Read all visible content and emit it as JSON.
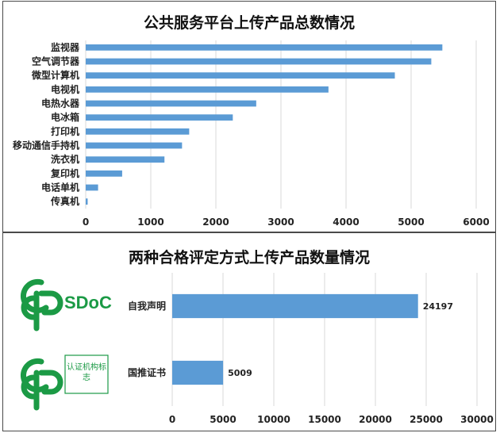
{
  "chart_data": [
    {
      "type": "bar",
      "orientation": "horizontal",
      "title": "公共服务平台上传产品总数情况",
      "categories": [
        "监视器",
        "空气调节器",
        "微型计算机",
        "电视机",
        "电热水器",
        "电冰箱",
        "打印机",
        "移动通信手持机",
        "洗衣机",
        "复印机",
        "电话单机",
        "传真机"
      ],
      "values": [
        5480,
        5310,
        4750,
        3730,
        2620,
        2260,
        1590,
        1480,
        1210,
        560,
        190,
        30
      ],
      "xlim": [
        0,
        6000
      ],
      "xticks": [
        "0",
        "1000",
        "2000",
        "3000",
        "4000",
        "5000",
        "6000"
      ],
      "grid": true,
      "bar_color": "#5b9bd5"
    },
    {
      "type": "bar",
      "orientation": "horizontal",
      "title": "两种合格评定方式上传产品数量情况",
      "categories": [
        "自我声明",
        "国推证书"
      ],
      "values": [
        24197,
        5009
      ],
      "data_labels": [
        "24197",
        "5009"
      ],
      "xlim": [
        0,
        30000
      ],
      "xticks": [
        "0",
        "5000",
        "10000",
        "15000",
        "20000",
        "25000",
        "30000"
      ],
      "grid": true,
      "bar_color": "#5b9bd5"
    }
  ],
  "logos": {
    "sdoc_text": "SDoC",
    "cert_text": "认证机构标志",
    "green": "#1b9a45"
  }
}
